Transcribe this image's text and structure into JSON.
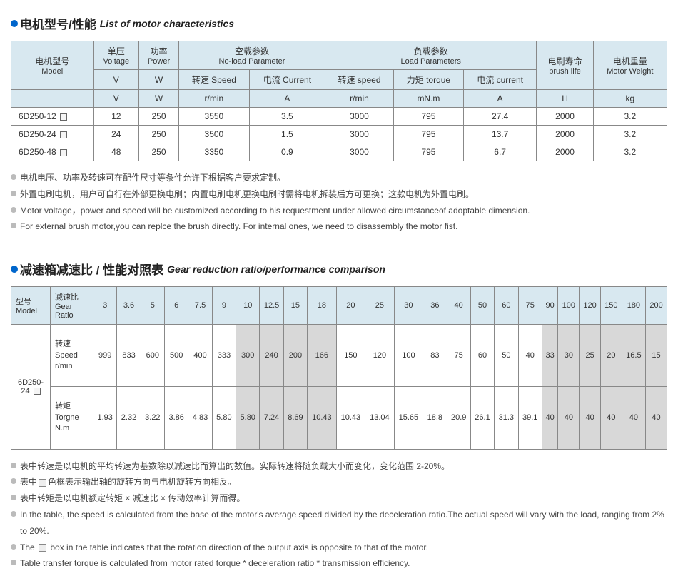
{
  "header1": {
    "cn": "电机型号/性能",
    "en": "List of motor characteristics"
  },
  "t1": {
    "h": {
      "model_cn": "电机型号",
      "model_en": "Model",
      "volt_cn": "单压",
      "volt_en": "Voltage",
      "power_cn": "功率",
      "power_en": "Power",
      "noload_cn": "空载参数",
      "noload_en": "No-load Parameter",
      "load_cn": "负载参数",
      "load_en": "Load Parameters",
      "brush_cn": "电刷寿命",
      "brush_en": "brush life",
      "weight_cn": "电机重量",
      "weight_en": "Motor Weight",
      "speed_cn": "转速 Speed",
      "current_cn": "电流 Current",
      "speed2_cn": "转速 speed",
      "torque_cn": "力矩 torque",
      "current2_cn": "电流 current",
      "u_v": "V",
      "u_w": "W",
      "u_rmin": "r/min",
      "u_a": "A",
      "u_mnm": "mN.m",
      "u_h": "H",
      "u_kg": "kg"
    },
    "rows": [
      {
        "m": "6D250-12",
        "v": "12",
        "w": "250",
        "nls": "3550",
        "nlc": "3.5",
        "ls": "3000",
        "lt": "795",
        "lc": "27.4",
        "bl": "2000",
        "wt": "3.2"
      },
      {
        "m": "6D250-24",
        "v": "24",
        "w": "250",
        "nls": "3500",
        "nlc": "1.5",
        "ls": "3000",
        "lt": "795",
        "lc": "13.7",
        "bl": "2000",
        "wt": "3.2"
      },
      {
        "m": "6D250-48",
        "v": "48",
        "w": "250",
        "nls": "3350",
        "nlc": "0.9",
        "ls": "3000",
        "lt": "795",
        "lc": "6.7",
        "bl": "2000",
        "wt": "3.2"
      }
    ]
  },
  "notes1": [
    "电机电压、功率及转速可在配件尺寸等条件允许下根据客户要求定制。",
    "外置电刷电机，用户可自行在外部更换电刷；内置电刷电机更换电刷时需将电机拆装后方可更换；这款电机为外置电刷。",
    "Motor voltage，power and speed will be customized according to his requestment under allowed circumstanceof adoptable dimension.",
    "For external brush motor,you can replce the brush directly. For internal ones, we need to disassembly the motor fist."
  ],
  "header2": {
    "cn": "减速箱减速比 / 性能对照表",
    "en": "Gear reduction ratio/performance comparison"
  },
  "t2": {
    "h_model_cn": "型号",
    "h_model_en": "Model",
    "h_ratio_cn": "减速比",
    "h_ratio_en": "Gear Ratio",
    "ratios": [
      "3",
      "3.6",
      "5",
      "6",
      "7.5",
      "9",
      "10",
      "12.5",
      "15",
      "18",
      "20",
      "25",
      "30",
      "36",
      "40",
      "50",
      "60",
      "75",
      "90",
      "100",
      "120",
      "150",
      "180",
      "200"
    ],
    "model": "6D250-24",
    "speed_label_cn": "转速",
    "speed_label_en": "Speed",
    "speed_unit": "r/min",
    "torque_label_cn": "转矩",
    "torque_label_en": "Torgne",
    "torque_unit": "N.m",
    "speed": [
      "999",
      "833",
      "600",
      "500",
      "400",
      "333",
      "300",
      "240",
      "200",
      "166",
      "150",
      "120",
      "100",
      "83",
      "75",
      "60",
      "50",
      "40",
      "33",
      "30",
      "25",
      "20",
      "16.5",
      "15"
    ],
    "torque": [
      "1.93",
      "2.32",
      "3.22",
      "3.86",
      "4.83",
      "5.80",
      "5.80",
      "7.24",
      "8.69",
      "10.43",
      "10.43",
      "13.04",
      "15.65",
      "18.8",
      "20.9",
      "26.1",
      "31.3",
      "39.1",
      "40",
      "40",
      "40",
      "40",
      "40",
      "40"
    ],
    "shade_speed": [
      0,
      0,
      0,
      0,
      0,
      0,
      1,
      1,
      1,
      1,
      0,
      0,
      0,
      0,
      0,
      0,
      0,
      0,
      1,
      1,
      1,
      1,
      1,
      1
    ],
    "shade_torque": [
      0,
      0,
      0,
      0,
      0,
      0,
      1,
      1,
      1,
      1,
      0,
      0,
      0,
      0,
      0,
      0,
      0,
      0,
      1,
      1,
      1,
      1,
      1,
      1
    ]
  },
  "notes2": {
    "n1": "表中转速是以电机的平均转速为基数除以减速比而算出的数值。实际转速将随负载大小而变化，变化范围 2-20%。",
    "n2a": "表中",
    "n2b": "色框表示输出轴的旋转方向与电机旋转方向相反。",
    "n3": "表中转矩是以电机额定转矩 × 减速比 × 传动效率计算而得。",
    "n4": "In the table, the speed is calculated from the base of the motor's average speed  divided by the deceleration ratio.The actual speed will vary with the load, ranging from 2% to 20%.",
    "n5a": "The",
    "n5b": "box in the table indicates that the rotation direction of the output axis is opposite to that of the motor.",
    "n6": "Table transfer torque is calculated from motor rated torque * deceleration ratio * transmission efficiency."
  }
}
